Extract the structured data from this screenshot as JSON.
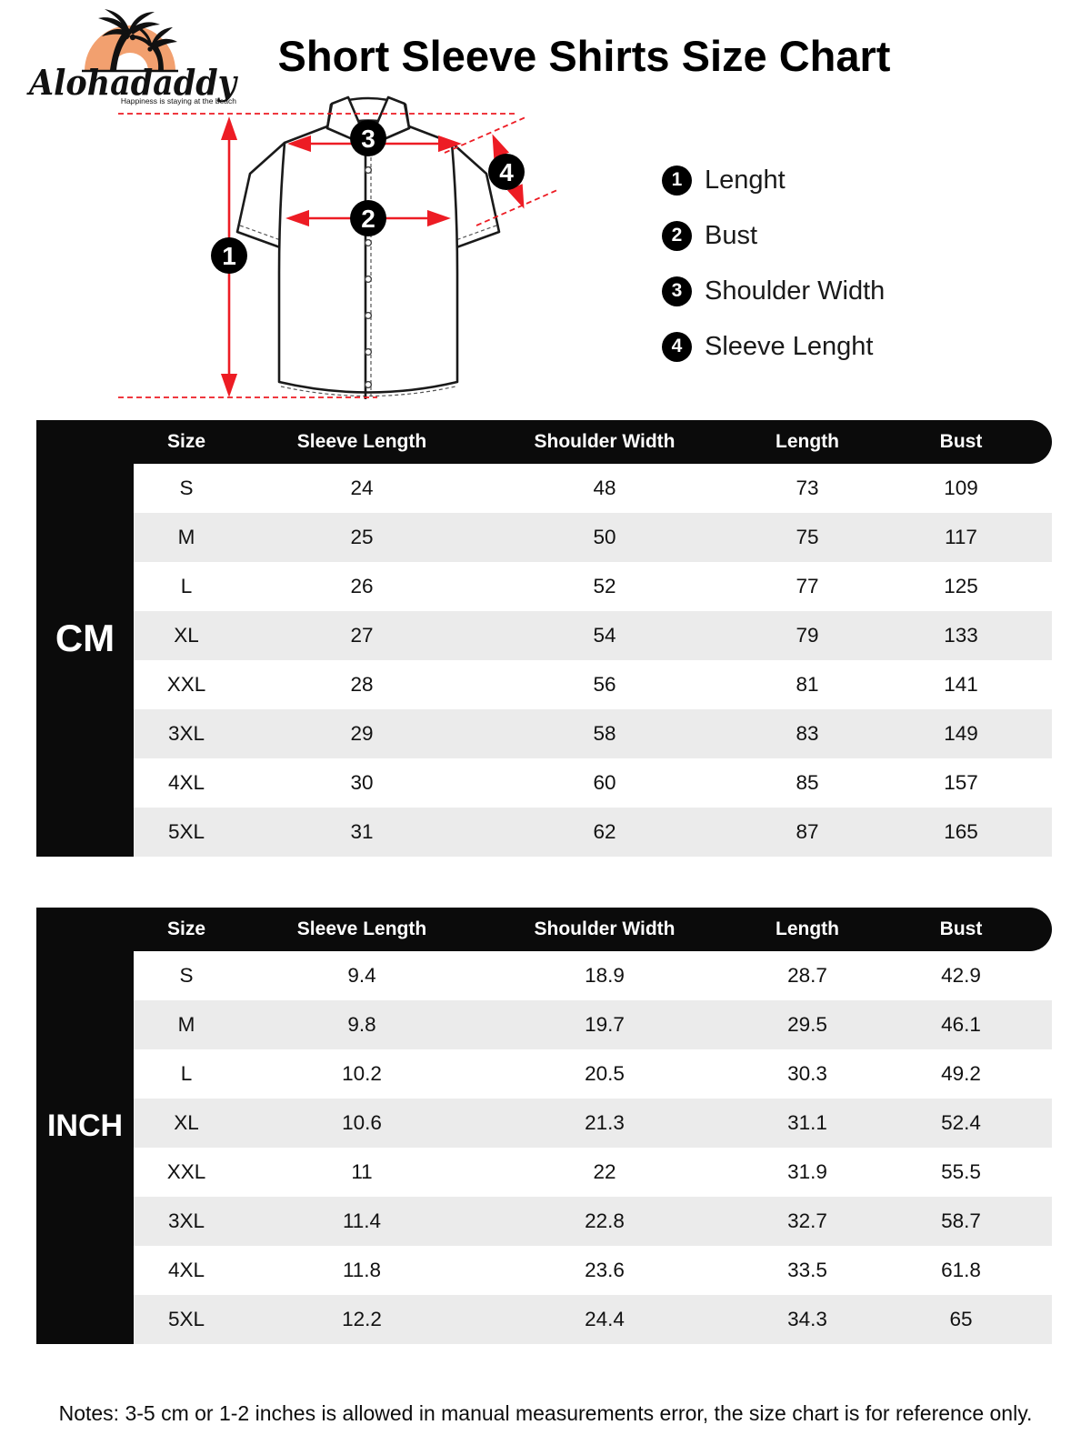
{
  "brand": {
    "name": "Alohadaddy",
    "tagline": "Happiness is staying at the beach"
  },
  "page_title": "Short Sleeve Shirts Size Chart",
  "legend": {
    "items": [
      {
        "num": "1",
        "label": "Lenght"
      },
      {
        "num": "2",
        "label": "Bust"
      },
      {
        "num": "3",
        "label": "Shoulder Width"
      },
      {
        "num": "4",
        "label": "Sleeve Lenght"
      }
    ]
  },
  "diagram": {
    "marker_1": "1",
    "marker_2": "2",
    "marker_3": "3",
    "marker_4": "4"
  },
  "colors": {
    "measure_red": "#ed1c24",
    "table_black": "#0b0b0b",
    "row_alt_gray": "#ebebeb",
    "logo_orange": "#f2a06f"
  },
  "size_tables": [
    {
      "unit_label": "CM",
      "columns": [
        "Size",
        "Sleeve Length",
        "Shoulder Width",
        "Length",
        "Bust"
      ],
      "rows": [
        [
          "S",
          "24",
          "48",
          "73",
          "109"
        ],
        [
          "M",
          "25",
          "50",
          "75",
          "117"
        ],
        [
          "L",
          "26",
          "52",
          "77",
          "125"
        ],
        [
          "XL",
          "27",
          "54",
          "79",
          "133"
        ],
        [
          "XXL",
          "28",
          "56",
          "81",
          "141"
        ],
        [
          "3XL",
          "29",
          "58",
          "83",
          "149"
        ],
        [
          "4XL",
          "30",
          "60",
          "85",
          "157"
        ],
        [
          "5XL",
          "31",
          "62",
          "87",
          "165"
        ]
      ]
    },
    {
      "unit_label": "INCH",
      "columns": [
        "Size",
        "Sleeve Length",
        "Shoulder Width",
        "Length",
        "Bust"
      ],
      "rows": [
        [
          "S",
          "9.4",
          "18.9",
          "28.7",
          "42.9"
        ],
        [
          "M",
          "9.8",
          "19.7",
          "29.5",
          "46.1"
        ],
        [
          "L",
          "10.2",
          "20.5",
          "30.3",
          "49.2"
        ],
        [
          "XL",
          "10.6",
          "21.3",
          "31.1",
          "52.4"
        ],
        [
          "XXL",
          "11",
          "22",
          "31.9",
          "55.5"
        ],
        [
          "3XL",
          "11.4",
          "22.8",
          "32.7",
          "58.7"
        ],
        [
          "4XL",
          "11.8",
          "23.6",
          "33.5",
          "61.8"
        ],
        [
          "5XL",
          "12.2",
          "24.4",
          "34.3",
          "65"
        ]
      ]
    }
  ],
  "notes": "Notes: 3-5 cm or 1-2 inches is allowed in manual measurements error, the size chart is for reference only."
}
